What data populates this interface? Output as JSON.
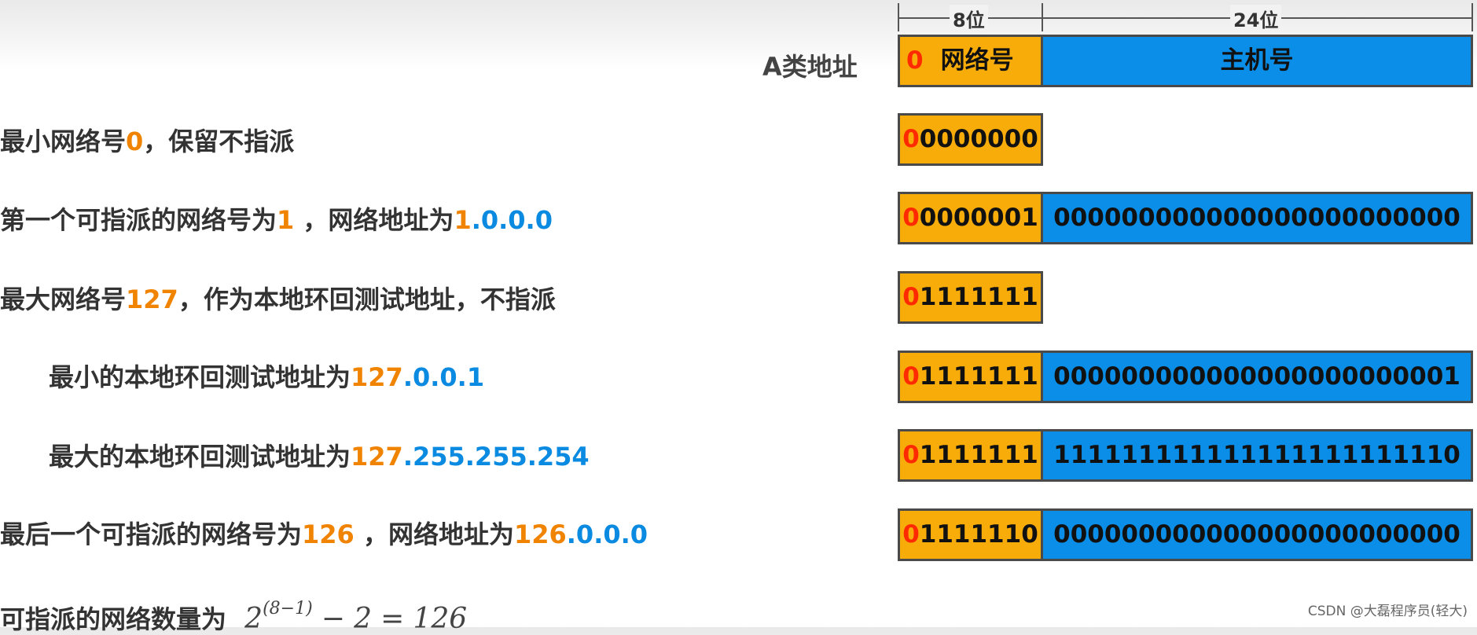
{
  "header": {
    "address_class": "A类地址",
    "net_width": "8位",
    "host_width": "24位",
    "first_bit": "0",
    "net_label": "网络号",
    "host_label": "主机号"
  },
  "rows": [
    {
      "text": [
        {
          "text": "最小网络号",
          "color": "#333333"
        },
        {
          "text": "0",
          "color": "#f08300"
        },
        {
          "text": "，保留不指派",
          "color": "#333333"
        }
      ],
      "bits": {
        "first": "0",
        "net": "0000000"
      }
    },
    {
      "text": [
        {
          "text": "第一个可指派的网络号为",
          "color": "#333333"
        },
        {
          "text": "1",
          "color": "#f08300"
        },
        {
          "text": " ，网络地址为",
          "color": "#333333"
        },
        {
          "text": "1",
          "color": "#f08300"
        },
        {
          "text": ".0.0.0",
          "color": "#0a8ae0"
        }
      ],
      "bits": {
        "first": "0",
        "net": "0000001",
        "host": "000000000000000000000000"
      }
    },
    {
      "text": [
        {
          "text": "最大网络号",
          "color": "#333333"
        },
        {
          "text": "127",
          "color": "#f08300"
        },
        {
          "text": "，作为本地环回测试地址，不指派",
          "color": "#333333"
        }
      ],
      "bits": {
        "first": "0",
        "net": "1111111"
      }
    },
    {
      "text": [
        {
          "text": "最小的本地环回测试地址为",
          "color": "#333333"
        },
        {
          "text": "127",
          "color": "#f08300"
        },
        {
          "text": ".0.0.1",
          "color": "#0a8ae0"
        }
      ],
      "bits": {
        "first": "0",
        "net": "1111111",
        "host": "000000000000000000000001"
      }
    },
    {
      "text": [
        {
          "text": "最大的本地环回测试地址为",
          "color": "#333333"
        },
        {
          "text": "127",
          "color": "#f08300"
        },
        {
          "text": ".255.255.254",
          "color": "#0a8ae0"
        }
      ],
      "bits": {
        "first": "0",
        "net": "1111111",
        "host": "111111111111111111111110"
      }
    },
    {
      "text": [
        {
          "text": "最后一个可指派的网络号为",
          "color": "#333333"
        },
        {
          "text": "126",
          "color": "#f08300"
        },
        {
          "text": " ，网络地址为",
          "color": "#333333"
        },
        {
          "text": "126",
          "color": "#f08300"
        },
        {
          "text": ".0.0.0",
          "color": "#0a8ae0"
        }
      ],
      "bits": {
        "first": "0",
        "net": "1111110",
        "host": "000000000000000000000000"
      }
    }
  ],
  "formula": {
    "label": "可指派的网络数量为",
    "base": "2",
    "exponent": "(8−1)",
    "minus": "−",
    "subtrahend": "2",
    "equals": "=",
    "result": "126"
  },
  "watermark": "CSDN @大磊程序员(轻大)"
}
